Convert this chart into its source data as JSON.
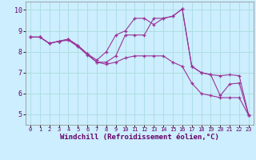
{
  "background_color": "#cceeff",
  "grid_color": "#aadddd",
  "line_color": "#993399",
  "xlabel": "Windchill (Refroidissement éolien,°C)",
  "xlabel_fontsize": 6.5,
  "ytick_labels": [
    "5",
    "6",
    "7",
    "8",
    "9",
    "10"
  ],
  "ytick_vals": [
    5,
    6,
    7,
    8,
    9,
    10
  ],
  "xtick_vals": [
    0,
    1,
    2,
    3,
    4,
    5,
    6,
    7,
    8,
    9,
    10,
    11,
    12,
    13,
    14,
    15,
    16,
    17,
    18,
    19,
    20,
    21,
    22,
    23
  ],
  "xlim": [
    -0.5,
    23.5
  ],
  "ylim": [
    4.5,
    10.4
  ],
  "series1_x": [
    0,
    1,
    2,
    3,
    4,
    5,
    6,
    7,
    8,
    9,
    10,
    11,
    12,
    13,
    14,
    15,
    16,
    17,
    18,
    19,
    20,
    21,
    22,
    23
  ],
  "series1_y": [
    8.7,
    8.7,
    8.4,
    8.5,
    8.6,
    8.3,
    7.9,
    7.5,
    7.4,
    7.5,
    7.7,
    7.8,
    7.8,
    7.8,
    7.8,
    7.5,
    7.3,
    6.5,
    6.0,
    5.9,
    5.8,
    5.8,
    5.8,
    4.95
  ],
  "series2_x": [
    0,
    1,
    2,
    3,
    4,
    5,
    6,
    7,
    8,
    9,
    10,
    11,
    12,
    13,
    14,
    15,
    16,
    17,
    18,
    19,
    20,
    21,
    22,
    23
  ],
  "series2_y": [
    8.7,
    8.7,
    8.4,
    8.5,
    8.6,
    8.3,
    7.9,
    7.6,
    8.0,
    8.8,
    9.0,
    9.6,
    9.6,
    9.3,
    9.6,
    9.7,
    10.05,
    7.3,
    7.0,
    6.9,
    5.9,
    6.45,
    6.5,
    4.95
  ],
  "series3_x": [
    0,
    1,
    2,
    3,
    4,
    5,
    6,
    7,
    8,
    9,
    10,
    11,
    12,
    13,
    14,
    15,
    16,
    17,
    18,
    19,
    20,
    21,
    22,
    23
  ],
  "series3_y": [
    8.7,
    8.7,
    8.4,
    8.5,
    8.55,
    8.25,
    7.85,
    7.5,
    7.5,
    7.8,
    8.8,
    8.8,
    8.8,
    9.6,
    9.6,
    9.7,
    10.05,
    7.3,
    7.0,
    6.9,
    6.85,
    6.9,
    6.85,
    4.95
  ]
}
